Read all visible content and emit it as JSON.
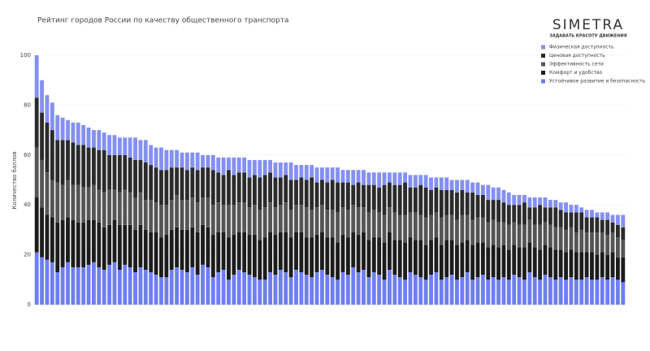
{
  "brand": {
    "name": "SIMETRA",
    "tagline": "ЗАДАВАТЬ КРАСОТУ ДВИЖЕНИЯ"
  },
  "chart_data": {
    "type": "stacked_bar",
    "title": "Рейтинг городов России по качеству общественного транспорта",
    "ylabel": "Количество баллов",
    "ylim": [
      0,
      100
    ],
    "yticks": [
      0,
      20,
      40,
      60,
      80,
      100
    ],
    "grid": true,
    "legend": "top-right",
    "categories": [
      null,
      null,
      null,
      null,
      null,
      null,
      null,
      null,
      null,
      null,
      null,
      null,
      null,
      null,
      null,
      null,
      null,
      null,
      null,
      null,
      null,
      null,
      null,
      null,
      null,
      null,
      null,
      null,
      null,
      null,
      null,
      null,
      null,
      null,
      null,
      null,
      null,
      null,
      null,
      null,
      null,
      null,
      null,
      null,
      null,
      null,
      null,
      null,
      null,
      null,
      null,
      null,
      null,
      null,
      null,
      null,
      null,
      null,
      null,
      null,
      null,
      null,
      null,
      null,
      null,
      null,
      null,
      null,
      null,
      null,
      null,
      null,
      null,
      null,
      null,
      null,
      null,
      null,
      null,
      null,
      null,
      null,
      null,
      null,
      null,
      null,
      null,
      null,
      null,
      null,
      null,
      null,
      null,
      null,
      null,
      null,
      null,
      null,
      null,
      null,
      null,
      null,
      null,
      null,
      null,
      null,
      null,
      null,
      null,
      null,
      null,
      null,
      null,
      null
    ],
    "series": [
      {
        "name": "Физическая доступность",
        "color": "#8490f2",
        "values": [
          17,
          13,
          11,
          11,
          10,
          9,
          8,
          8,
          9,
          8,
          8,
          7,
          8,
          7,
          8,
          8,
          7,
          7,
          8,
          9,
          8,
          9,
          8,
          8,
          9,
          8,
          7,
          7,
          6,
          7,
          6,
          7,
          5,
          5,
          6,
          6,
          7,
          5,
          7,
          6,
          6,
          7,
          6,
          7,
          6,
          5,
          6,
          6,
          5,
          7,
          6,
          5,
          6,
          5,
          6,
          5,
          6,
          5,
          6,
          5,
          5,
          6,
          5,
          6,
          5,
          5,
          6,
          5,
          4,
          5,
          5,
          4,
          5,
          5,
          4,
          5,
          5,
          4,
          5,
          5,
          4,
          5,
          4,
          5,
          4,
          5,
          4,
          6,
          5,
          5,
          5,
          5,
          4,
          4,
          3,
          4,
          4,
          3,
          4,
          3,
          3,
          3,
          4,
          3,
          3,
          2,
          3,
          3,
          2,
          3,
          3,
          3,
          4,
          5
        ]
      },
      {
        "name": "Ценовая доступность",
        "color": "#2b2b2b",
        "values": [
          20,
          19,
          20,
          20,
          17,
          18,
          16,
          17,
          16,
          17,
          16,
          15,
          16,
          17,
          14,
          14,
          15,
          14,
          14,
          15,
          13,
          15,
          14,
          14,
          14,
          14,
          13,
          11,
          13,
          12,
          12,
          13,
          12,
          12,
          14,
          12,
          12,
          14,
          12,
          12,
          12,
          12,
          12,
          13,
          13,
          12,
          12,
          11,
          11,
          12,
          10,
          11,
          11,
          13,
          10,
          10,
          11,
          12,
          12,
          10,
          11,
          8,
          10,
          9,
          11,
          10,
          10,
          12,
          10,
          11,
          12,
          13,
          10,
          10,
          12,
          12,
          10,
          10,
          11,
          10,
          10,
          11,
          10,
          9,
          11,
          9,
          9,
          9,
          8,
          9,
          8,
          8,
          7,
          8,
          9,
          5,
          7,
          8,
          6,
          7,
          8,
          7,
          7,
          6,
          8,
          7,
          6,
          6,
          6,
          5,
          6,
          4,
          5,
          5
        ]
      },
      {
        "name": "Эффективность сети",
        "color": "#555555",
        "values": [
          20,
          19,
          17,
          15,
          16,
          14,
          15,
          14,
          15,
          14,
          13,
          14,
          13,
          14,
          14,
          12,
          13,
          14,
          13,
          13,
          13,
          12,
          13,
          12,
          13,
          12,
          12,
          13,
          12,
          12,
          12,
          12,
          11,
          12,
          12,
          12,
          11,
          13,
          12,
          12,
          12,
          11,
          12,
          12,
          12,
          12,
          11,
          11,
          12,
          11,
          11,
          11,
          12,
          11,
          11,
          11,
          11,
          11,
          12,
          11,
          11,
          11,
          11,
          10,
          11,
          11,
          10,
          11,
          10,
          11,
          10,
          11,
          10,
          11,
          10,
          11,
          10,
          10,
          11,
          10,
          10,
          10,
          11,
          10,
          10,
          10,
          10,
          10,
          10,
          10,
          9,
          10,
          9,
          9,
          9,
          9,
          9,
          10,
          9,
          9,
          9,
          9,
          9,
          9,
          8,
          9,
          8,
          8,
          9,
          8,
          8,
          8,
          8,
          7
        ]
      },
      {
        "name": "Комфорт и удобство",
        "color": "#1c1c1c",
        "values": [
          22,
          20,
          18,
          18,
          20,
          19,
          18,
          19,
          18,
          18,
          18,
          17,
          18,
          17,
          16,
          17,
          18,
          16,
          17,
          17,
          17,
          16,
          16,
          17,
          16,
          17,
          16,
          16,
          16,
          17,
          16,
          17,
          16,
          16,
          17,
          16,
          15,
          17,
          16,
          15,
          16,
          16,
          17,
          16,
          17,
          16,
          16,
          15,
          16,
          16,
          15,
          16,
          15,
          16,
          15,
          15,
          15,
          16,
          15,
          15,
          15,
          14,
          15,
          15,
          15,
          14,
          15,
          15,
          15,
          14,
          15,
          15,
          14,
          14,
          15,
          14,
          14,
          14,
          14,
          15,
          14,
          14,
          14,
          13,
          14,
          14,
          13,
          13,
          13,
          13,
          13,
          12,
          12,
          12,
          13,
          12,
          12,
          12,
          12,
          12,
          12,
          11,
          11,
          11,
          11,
          11,
          10,
          11,
          10,
          10,
          10,
          10,
          9,
          10
        ]
      },
      {
        "name": "Устойчивое развитие и безопасность",
        "color": "#6f7ef0",
        "values": [
          21,
          19,
          18,
          17,
          13,
          15,
          17,
          15,
          15,
          15,
          16,
          17,
          15,
          14,
          16,
          17,
          14,
          16,
          15,
          13,
          15,
          14,
          13,
          12,
          11,
          11,
          14,
          15,
          14,
          13,
          15,
          12,
          16,
          15,
          11,
          13,
          14,
          10,
          12,
          14,
          13,
          12,
          11,
          10,
          10,
          13,
          12,
          14,
          13,
          11,
          14,
          13,
          12,
          11,
          13,
          14,
          12,
          11,
          10,
          13,
          12,
          15,
          13,
          14,
          11,
          13,
          12,
          10,
          14,
          12,
          11,
          10,
          13,
          12,
          11,
          10,
          12,
          13,
          10,
          11,
          12,
          10,
          11,
          13,
          10,
          11,
          12,
          10,
          11,
          10,
          11,
          10,
          12,
          11,
          10,
          13,
          11,
          10,
          12,
          11,
          10,
          11,
          10,
          11,
          10,
          10,
          11,
          10,
          10,
          11,
          10,
          11,
          10,
          9
        ]
      }
    ]
  }
}
